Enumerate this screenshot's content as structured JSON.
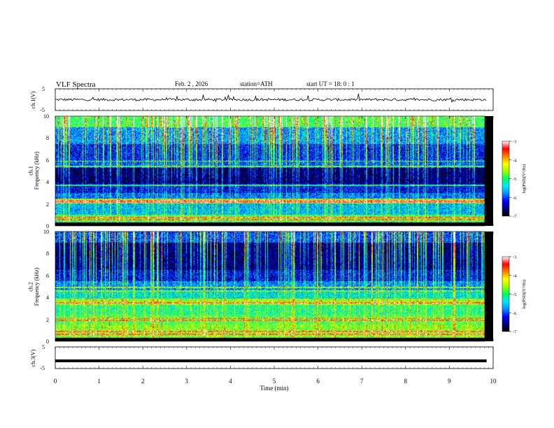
{
  "header": {
    "title": "VLF  Spectra",
    "date": "Feb. 2  , 2026",
    "station": "station=ATH",
    "start": "start  UT  =    18: 0   : 1"
  },
  "chart_data": [
    {
      "type": "line",
      "name": "ch1-voltage",
      "ylabel": "ch.1(V)",
      "ylim": [
        -5,
        5
      ],
      "yticks": [
        "5",
        "-5"
      ],
      "note": "noisy waveform centred near 0 V, amplitude roughly +/-1 V with spikes"
    },
    {
      "type": "heatmap",
      "name": "ch1-spectrogram",
      "ylabel": "ch.1\nFrequency  (kHz)",
      "ylim": [
        0,
        10
      ],
      "yticks": [
        "0",
        "2",
        "4",
        "6",
        "8",
        "10"
      ],
      "colorbar": {
        "label": "log(PSD)(V²/Hz)",
        "range": [
          -7,
          -3
        ],
        "ticks": [
          "-3",
          "-4",
          "-5",
          "-6",
          "-7"
        ],
        "colormap": [
          "#000000",
          "#00007a",
          "#0000ff",
          "#0090ff",
          "#00e6ff",
          "#00ff60",
          "#a0ff00",
          "#ffff00",
          "#ff8000",
          "#ff0000",
          "#ffffff"
        ]
      },
      "bands": [
        {
          "from_khz": 0.0,
          "to_khz": 0.3,
          "level": -7.0
        },
        {
          "from_khz": 0.3,
          "to_khz": 1.0,
          "level": -5.0
        },
        {
          "from_khz": 1.0,
          "to_khz": 2.0,
          "level": -5.6
        },
        {
          "from_khz": 2.0,
          "to_khz": 2.5,
          "level": -4.6
        },
        {
          "from_khz": 2.5,
          "to_khz": 3.0,
          "level": -5.9
        },
        {
          "from_khz": 3.0,
          "to_khz": 3.8,
          "level": -6.3
        },
        {
          "from_khz": 3.8,
          "to_khz": 5.3,
          "level": -6.7
        },
        {
          "from_khz": 5.3,
          "to_khz": 6.0,
          "level": -6.0
        },
        {
          "from_khz": 6.0,
          "to_khz": 7.5,
          "level": -6.2
        },
        {
          "from_khz": 7.5,
          "to_khz": 9.0,
          "level": -5.7
        },
        {
          "from_khz": 9.0,
          "to_khz": 10.0,
          "level": -4.9
        }
      ],
      "lines_khz": [
        0.55,
        0.75,
        2.15,
        2.3,
        3.7,
        5.4,
        5.9
      ]
    },
    {
      "type": "heatmap",
      "name": "ch2-spectrogram",
      "ylabel": "ch.2\nFrequency  (kHz)",
      "ylim": [
        0,
        10
      ],
      "yticks": [
        "0",
        "2",
        "4",
        "6",
        "8",
        "10"
      ],
      "colorbar": {
        "label": "log(PSD)(V²/Hz)",
        "range": [
          -7,
          -3
        ],
        "ticks": [
          "-3",
          "-4",
          "-5",
          "-6",
          "-7"
        ],
        "colormap": [
          "#000000",
          "#00007a",
          "#0000ff",
          "#0090ff",
          "#00e6ff",
          "#00ff60",
          "#a0ff00",
          "#ffff00",
          "#ff8000",
          "#ff0000",
          "#ffffff"
        ]
      },
      "bands": [
        {
          "from_khz": 0.0,
          "to_khz": 0.3,
          "level": -7.0
        },
        {
          "from_khz": 0.3,
          "to_khz": 1.5,
          "level": -4.7
        },
        {
          "from_khz": 1.5,
          "to_khz": 2.4,
          "level": -4.9
        },
        {
          "from_khz": 2.4,
          "to_khz": 3.3,
          "level": -5.1
        },
        {
          "from_khz": 3.3,
          "to_khz": 3.9,
          "level": -4.6
        },
        {
          "from_khz": 3.9,
          "to_khz": 4.5,
          "level": -5.4
        },
        {
          "from_khz": 4.5,
          "to_khz": 5.5,
          "level": -5.8
        },
        {
          "from_khz": 5.5,
          "to_khz": 6.5,
          "level": -6.3
        },
        {
          "from_khz": 6.5,
          "to_khz": 9.0,
          "level": -6.6
        },
        {
          "from_khz": 9.0,
          "to_khz": 10.0,
          "level": -6.0
        }
      ],
      "lines_khz": [
        0.6,
        0.85,
        1.9,
        2.05,
        3.5,
        4.6,
        4.9
      ]
    },
    {
      "type": "line",
      "name": "ch3-voltage",
      "ylabel": "ch.3(V)",
      "ylim": [
        -5,
        5
      ],
      "yticks": [
        "5",
        "-5"
      ],
      "constant_value": -1.5,
      "note": "flat thick trace"
    }
  ],
  "xaxis": {
    "label": "Time  (min)",
    "range": [
      0,
      10
    ],
    "ticks": [
      "0",
      "1",
      "2",
      "3",
      "4",
      "5",
      "6",
      "7",
      "8",
      "9",
      "10"
    ],
    "data_end_min": 9.85
  }
}
